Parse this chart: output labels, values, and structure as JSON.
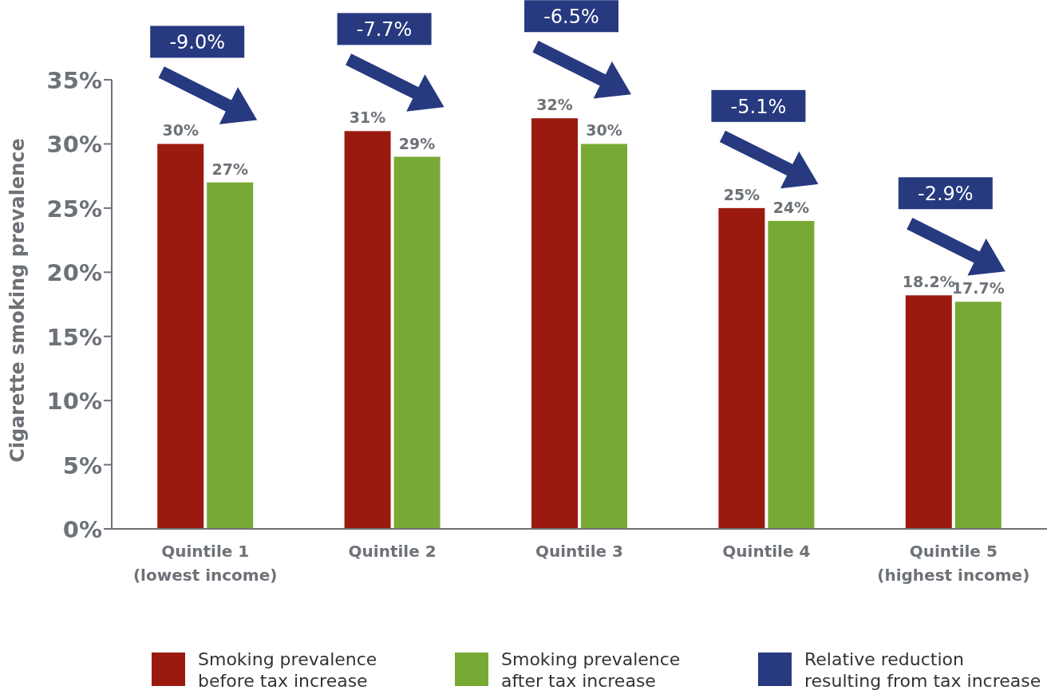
{
  "chart_data": {
    "type": "bar",
    "ylabel": "Cigarette smoking prevalence",
    "categories": [
      "Quintile 1\n(lowest income)",
      "Quintile 2",
      "Quintile 3",
      "Quintile 4",
      "Quintile 5\n(highest income)"
    ],
    "series": [
      {
        "name": "Smoking prevalence before tax increase",
        "color": "#9b1a10",
        "values": [
          30,
          31,
          32,
          25,
          18.2
        ],
        "value_labels": [
          "30%",
          "31%",
          "32%",
          "25%",
          "18.2%"
        ]
      },
      {
        "name": "Smoking prevalence after tax increase",
        "color": "#79a935",
        "values": [
          27,
          29,
          30,
          24,
          17.7
        ],
        "value_labels": [
          "27%",
          "29%",
          "30%",
          "24%",
          "17.7%"
        ]
      },
      {
        "name": "Relative reduction resulting from tax increase",
        "type": "other",
        "color": "#27397f",
        "values": [
          null,
          null,
          null,
          null,
          null
        ]
      }
    ],
    "annotations": [
      "-9.0%",
      "-7.7%",
      "-6.5%",
      "-5.1%",
      "-2.9%"
    ],
    "ylim": [
      0,
      35
    ],
    "yticks": [
      {
        "value": 0,
        "label": "0%"
      },
      {
        "value": 5,
        "label": "5%"
      },
      {
        "value": 10,
        "label": "10%"
      },
      {
        "value": 15,
        "label": "15%"
      },
      {
        "value": 20,
        "label": "20%"
      },
      {
        "value": 25,
        "label": "25%"
      },
      {
        "value": 30,
        "label": "30%"
      },
      {
        "value": 35,
        "label": "35%"
      }
    ],
    "grid": false,
    "legend": "bottom"
  }
}
